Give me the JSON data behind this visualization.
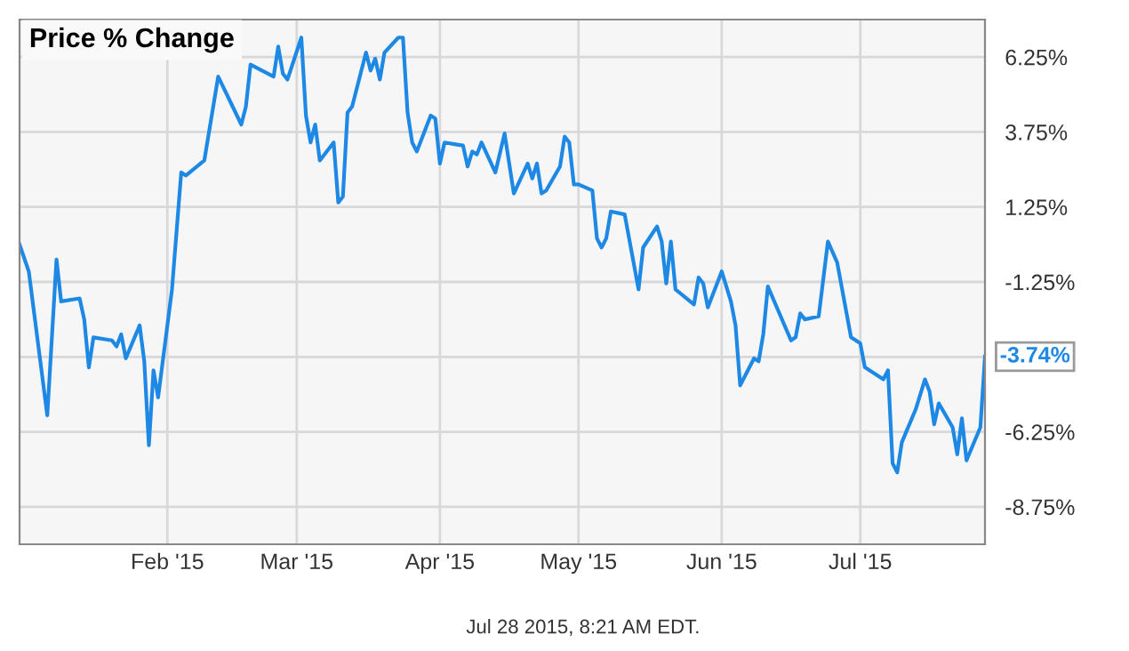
{
  "chart_data": {
    "type": "line",
    "title": "Price % Change",
    "x": [
      "2014-12-31",
      "2015-01-02",
      "2015-01-06",
      "2015-01-08",
      "2015-01-09",
      "2015-01-13",
      "2015-01-14",
      "2015-01-15",
      "2015-01-16",
      "2015-01-20",
      "2015-01-21",
      "2015-01-22",
      "2015-01-23",
      "2015-01-26",
      "2015-01-27",
      "2015-01-28",
      "2015-01-29",
      "2015-01-30",
      "2015-02-02",
      "2015-02-04",
      "2015-02-05",
      "2015-02-09",
      "2015-02-12",
      "2015-02-17",
      "2015-02-18",
      "2015-02-19",
      "2015-02-24",
      "2015-02-25",
      "2015-02-26",
      "2015-02-27",
      "2015-03-02",
      "2015-03-03",
      "2015-03-04",
      "2015-03-05",
      "2015-03-06",
      "2015-03-09",
      "2015-03-10",
      "2015-03-11",
      "2015-03-12",
      "2015-03-13",
      "2015-03-16",
      "2015-03-17",
      "2015-03-18",
      "2015-03-19",
      "2015-03-20",
      "2015-03-23",
      "2015-03-24",
      "2015-03-25",
      "2015-03-26",
      "2015-03-27",
      "2015-03-30",
      "2015-03-31",
      "2015-04-01",
      "2015-04-02",
      "2015-04-06",
      "2015-04-07",
      "2015-04-08",
      "2015-04-09",
      "2015-04-10",
      "2015-04-13",
      "2015-04-15",
      "2015-04-17",
      "2015-04-20",
      "2015-04-21",
      "2015-04-22",
      "2015-04-23",
      "2015-04-24",
      "2015-04-27",
      "2015-04-28",
      "2015-04-29",
      "2015-04-30",
      "2015-05-01",
      "2015-05-04",
      "2015-05-05",
      "2015-05-06",
      "2015-05-07",
      "2015-05-08",
      "2015-05-11",
      "2015-05-14",
      "2015-05-15",
      "2015-05-18",
      "2015-05-19",
      "2015-05-20",
      "2015-05-21",
      "2015-05-22",
      "2015-05-26",
      "2015-05-27",
      "2015-05-28",
      "2015-05-29",
      "2015-06-01",
      "2015-06-03",
      "2015-06-04",
      "2015-06-05",
      "2015-06-08",
      "2015-06-09",
      "2015-06-10",
      "2015-06-11",
      "2015-06-16",
      "2015-06-17",
      "2015-06-18",
      "2015-06-19",
      "2015-06-22",
      "2015-06-24",
      "2015-06-26",
      "2015-06-29",
      "2015-07-01",
      "2015-07-02",
      "2015-07-06",
      "2015-07-07",
      "2015-07-08",
      "2015-07-09",
      "2015-07-10",
      "2015-07-13",
      "2015-07-15",
      "2015-07-16",
      "2015-07-17",
      "2015-07-18",
      "2015-07-21",
      "2015-07-22",
      "2015-07-23",
      "2015-07-24",
      "2015-07-27",
      "2015-07-28"
    ],
    "series": [
      {
        "color": "#1e88e5",
        "values": [
          0.0,
          -0.9,
          -5.7,
          -0.5,
          -1.9,
          -1.8,
          -2.5,
          -4.1,
          -3.1,
          -3.2,
          -3.4,
          -3.0,
          -3.8,
          -2.7,
          -3.9,
          -6.7,
          -4.2,
          -5.1,
          -1.5,
          2.4,
          2.3,
          2.8,
          5.6,
          4.0,
          4.6,
          6.0,
          5.6,
          6.6,
          5.7,
          5.5,
          6.9,
          4.3,
          3.4,
          4.0,
          2.8,
          3.4,
          1.4,
          1.6,
          4.4,
          4.6,
          6.4,
          5.8,
          6.2,
          5.5,
          6.4,
          6.9,
          6.9,
          4.4,
          3.4,
          3.1,
          4.3,
          4.2,
          2.7,
          3.4,
          3.3,
          2.6,
          3.1,
          3.0,
          3.4,
          2.4,
          3.7,
          1.7,
          2.7,
          2.2,
          2.7,
          1.7,
          1.8,
          2.6,
          3.6,
          3.4,
          2.0,
          2.0,
          1.8,
          0.2,
          -0.1,
          0.2,
          1.1,
          1.0,
          -1.5,
          -0.1,
          0.6,
          0.1,
          -1.3,
          0.1,
          -1.5,
          -2.0,
          -1.1,
          -1.3,
          -2.1,
          -0.9,
          -1.9,
          -2.7,
          -4.7,
          -3.8,
          -3.9,
          -3.0,
          -1.4,
          -3.2,
          -3.1,
          -2.3,
          -2.5,
          -2.4,
          0.1,
          -0.6,
          -3.1,
          -3.3,
          -4.1,
          -4.5,
          -4.2,
          -7.3,
          -7.6,
          -6.6,
          -5.5,
          -4.5,
          -4.9,
          -6.0,
          -5.3,
          -6.1,
          -7.0,
          -5.8,
          -7.2,
          -6.1,
          -3.74
        ]
      }
    ],
    "xlim": [
      "2014-12-31",
      "2015-07-28"
    ],
    "xticks": [
      {
        "value": "2015-02-01",
        "label": "Feb '15"
      },
      {
        "value": "2015-03-01",
        "label": "Mar '15"
      },
      {
        "value": "2015-04-01",
        "label": "Apr '15"
      },
      {
        "value": "2015-05-01",
        "label": "May '15"
      },
      {
        "value": "2015-06-01",
        "label": "Jun '15"
      },
      {
        "value": "2015-07-01",
        "label": "Jul '15"
      }
    ],
    "ylim": [
      -10,
      7.5
    ],
    "yticks": [
      {
        "value": -8.75,
        "label": "-8.75%"
      },
      {
        "value": -6.25,
        "label": "-6.25%"
      },
      {
        "value": -3.75,
        "label": null
      },
      {
        "value": -1.25,
        "label": "-1.25%"
      },
      {
        "value": 1.25,
        "label": "1.25%"
      },
      {
        "value": 3.75,
        "label": "3.75%"
      },
      {
        "value": 6.25,
        "label": "6.25%"
      }
    ],
    "grid": true,
    "legend": false,
    "marker": "none",
    "line_style": "solid",
    "annotations": [
      {
        "text": "-3.74%",
        "x": "2015-07-28",
        "y": -3.74
      },
      "Jul 28 2015, 8:21 AM EDT."
    ]
  }
}
